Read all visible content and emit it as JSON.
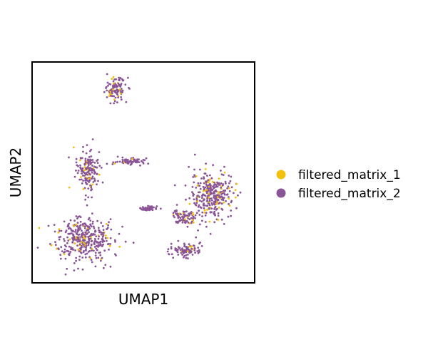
{
  "chart_data": {
    "type": "scatter",
    "title": "",
    "xlabel": "UMAP1",
    "ylabel": "UMAP2",
    "xlim": [
      0,
      10
    ],
    "ylim": [
      0,
      10
    ],
    "grid": false,
    "ticks": false,
    "legend_position": "right",
    "series": [
      {
        "name": "filtered_matrix_1",
        "color": "#f2c10e"
      },
      {
        "name": "filtered_matrix_2",
        "color": "#8a5597"
      }
    ],
    "clusters": [
      {
        "x": 3.7,
        "y": 8.9,
        "sx": 0.45,
        "sy": 0.5
      },
      {
        "x": 2.4,
        "y": 5.1,
        "sx": 0.45,
        "sy": 0.95
      },
      {
        "x": 2.2,
        "y": 1.9,
        "sx": 1.3,
        "sy": 0.9
      },
      {
        "x": 8.2,
        "y": 3.9,
        "sx": 0.95,
        "sy": 1.0
      },
      {
        "x": 7.0,
        "y": 1.4,
        "sx": 0.6,
        "sy": 0.3
      },
      {
        "x": 6.9,
        "y": 2.9,
        "sx": 0.5,
        "sy": 0.3
      },
      {
        "x": 4.3,
        "y": 5.5,
        "sx": 0.6,
        "sy": 0.15
      },
      {
        "x": 5.2,
        "y": 3.3,
        "sx": 0.35,
        "sy": 0.12
      }
    ]
  }
}
